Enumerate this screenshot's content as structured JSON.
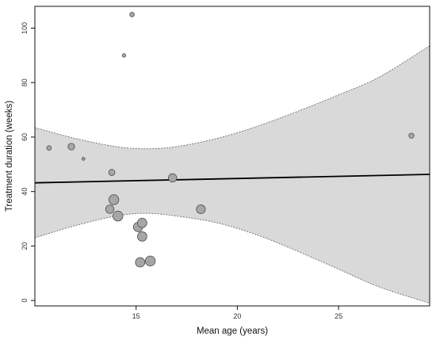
{
  "chart_data": {
    "type": "scatter",
    "title": "",
    "xlabel": "Mean age (years)",
    "ylabel": "Treatment duration (weeks)",
    "xlim": [
      10.0,
      29.5
    ],
    "ylim": [
      -2,
      108
    ],
    "x_ticks": [
      15,
      20,
      25
    ],
    "y_ticks": [
      0,
      20,
      40,
      60,
      80,
      100
    ],
    "grid": false,
    "legend": "none",
    "points": [
      {
        "x": 10.7,
        "y": 56,
        "weight": 0.25
      },
      {
        "x": 11.8,
        "y": 56.5,
        "weight": 0.45
      },
      {
        "x": 12.4,
        "y": 52,
        "weight": 0.1
      },
      {
        "x": 13.8,
        "y": 47,
        "weight": 0.4
      },
      {
        "x": 13.7,
        "y": 33.5,
        "weight": 0.6
      },
      {
        "x": 13.9,
        "y": 37,
        "weight": 0.75
      },
      {
        "x": 14.1,
        "y": 31,
        "weight": 0.75
      },
      {
        "x": 14.4,
        "y": 90,
        "weight": 0.15
      },
      {
        "x": 14.8,
        "y": 105,
        "weight": 0.25
      },
      {
        "x": 15.1,
        "y": 27,
        "weight": 0.7
      },
      {
        "x": 15.3,
        "y": 28.5,
        "weight": 0.7
      },
      {
        "x": 15.3,
        "y": 23.5,
        "weight": 0.7
      },
      {
        "x": 15.2,
        "y": 14,
        "weight": 0.7
      },
      {
        "x": 15.7,
        "y": 14.5,
        "weight": 0.75
      },
      {
        "x": 16.8,
        "y": 45,
        "weight": 0.6
      },
      {
        "x": 18.2,
        "y": 33.5,
        "weight": 0.65
      },
      {
        "x": 28.6,
        "y": 60.5,
        "weight": 0.3
      }
    ],
    "regression_line": {
      "x": [
        10.0,
        29.5
      ],
      "y": [
        43.2,
        46.3
      ]
    },
    "confidence_band": {
      "x": [
        10.0,
        12.0,
        14.0,
        15.5,
        17.0,
        19.0,
        21.0,
        23.0,
        25.0,
        27.0,
        29.5
      ],
      "upper": [
        63.5,
        59.5,
        56.5,
        55.7,
        56.5,
        59.5,
        64.0,
        69.5,
        75.5,
        82.0,
        93.5
      ],
      "lower": [
        23.0,
        27.5,
        31.0,
        32.0,
        31.0,
        28.5,
        24.0,
        18.0,
        11.5,
        5.0,
        -1.0
      ]
    },
    "colors": {
      "point_fill": "#a6a6a6",
      "point_stroke": "#4d4d4d",
      "band_fill": "#d9d9d9",
      "band_edge": "#6e6e6e",
      "line": "#000000"
    }
  }
}
